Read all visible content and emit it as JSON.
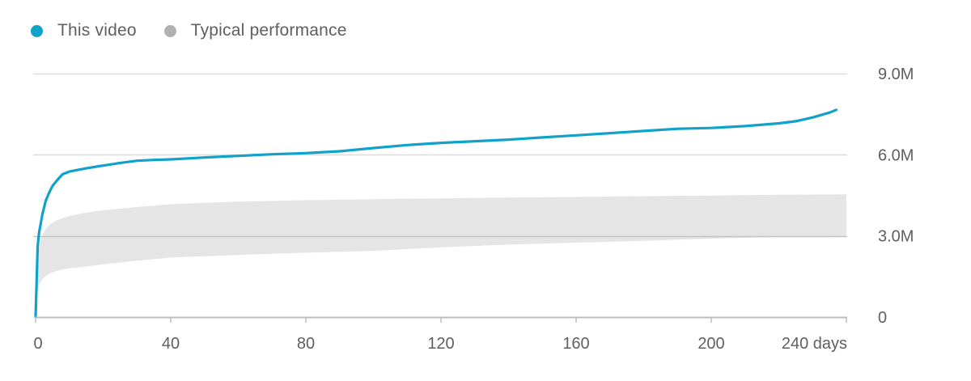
{
  "legend": {
    "items": [
      {
        "label": "This video",
        "color": "#10a2c9"
      },
      {
        "label": "Typical performance",
        "color": "#b1b1b1"
      }
    ]
  },
  "colors": {
    "series": "#10a2c9",
    "band": "#e5e5e5",
    "grid": "#dcdcdc",
    "midline": "#c4c4c4",
    "axis": "#bdbdbd",
    "text": "#5f5f5f"
  },
  "chart_data": {
    "type": "line",
    "xlim": [
      0,
      240
    ],
    "ylim": [
      0,
      9000000
    ],
    "x_ticks": [
      {
        "value": 0,
        "label": "0"
      },
      {
        "value": 40,
        "label": "40"
      },
      {
        "value": 80,
        "label": "80"
      },
      {
        "value": 120,
        "label": "120"
      },
      {
        "value": 160,
        "label": "160"
      },
      {
        "value": 200,
        "label": "200"
      },
      {
        "value": 240,
        "label": "240 days"
      }
    ],
    "y_ticks": [
      {
        "value": 0,
        "label": "0"
      },
      {
        "value": 3000000,
        "label": "3.0M"
      },
      {
        "value": 6000000,
        "label": "6.0M"
      },
      {
        "value": 9000000,
        "label": "9.0M"
      }
    ],
    "y_axis_position": "right",
    "grid": true,
    "legend_position": "top-left",
    "series": [
      {
        "name": "This video",
        "x": [
          0,
          0.6,
          1,
          2,
          3,
          4,
          5,
          6,
          7,
          8,
          10,
          12,
          15,
          18,
          20,
          25,
          30,
          35,
          40,
          50,
          60,
          70,
          80,
          90,
          100,
          110,
          120,
          130,
          140,
          150,
          160,
          170,
          180,
          190,
          200,
          210,
          220,
          225,
          230,
          235,
          237
        ],
        "y": [
          0,
          2600000,
          3100000,
          3800000,
          4300000,
          4600000,
          4850000,
          5000000,
          5150000,
          5280000,
          5380000,
          5430000,
          5500000,
          5560000,
          5600000,
          5700000,
          5780000,
          5810000,
          5830000,
          5900000,
          5960000,
          6020000,
          6060000,
          6130000,
          6250000,
          6360000,
          6440000,
          6500000,
          6560000,
          6640000,
          6720000,
          6800000,
          6880000,
          6960000,
          6990000,
          7060000,
          7160000,
          7240000,
          7380000,
          7560000,
          7660000
        ]
      }
    ],
    "typical_band": {
      "name": "Typical performance",
      "x": [
        0,
        0.5,
        1,
        2,
        3,
        4,
        6,
        8,
        10,
        15,
        20,
        30,
        40,
        60,
        80,
        100,
        120,
        140,
        160,
        180,
        200,
        220,
        240
      ],
      "lower": [
        0,
        800000,
        1200000,
        1400000,
        1520000,
        1600000,
        1700000,
        1760000,
        1800000,
        1870000,
        1950000,
        2080000,
        2200000,
        2300000,
        2380000,
        2450000,
        2580000,
        2680000,
        2750000,
        2820000,
        2900000,
        2960000,
        3000000
      ],
      "upper": [
        0,
        1900000,
        2600000,
        3050000,
        3260000,
        3400000,
        3560000,
        3660000,
        3740000,
        3860000,
        3950000,
        4070000,
        4170000,
        4270000,
        4320000,
        4360000,
        4390000,
        4420000,
        4440000,
        4470000,
        4490000,
        4520000,
        4540000
      ]
    }
  }
}
